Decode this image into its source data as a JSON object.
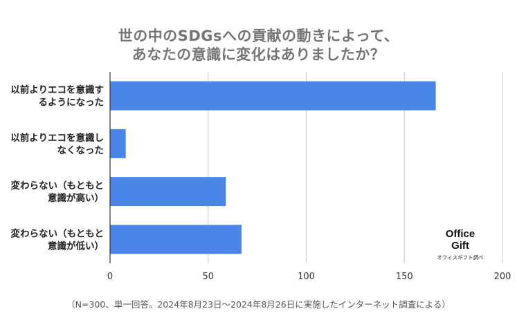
{
  "chart_data": {
    "type": "bar",
    "orientation": "horizontal",
    "title_lines": [
      "世の中のSDGsへの貢献の動きによって、",
      "あなたの意識に変化はありましたか？"
    ],
    "categories": [
      [
        "以前よりエコを意識す",
        "るようになった"
      ],
      [
        "以前よりエコを意識し",
        "なくなった"
      ],
      [
        "変わらない（もともと",
        "意識が高い）"
      ],
      [
        "変わらない（もともと",
        "意識が低い）"
      ]
    ],
    "values": [
      166,
      8,
      59,
      67
    ],
    "xlim": [
      0,
      200
    ],
    "xticks": [
      "0",
      "50",
      "100",
      "150",
      "200"
    ],
    "xtick_values": [
      0,
      50,
      100,
      150,
      200
    ],
    "grid": true,
    "bar_color": "#4a86e8",
    "footnote": "（N=300、単一回答。2024年8月23日〜2024年8月26日に実施したインターネット調査による）"
  },
  "logo": {
    "line1": "Office",
    "line2": "Gift",
    "caption": "オフィスギフト調べ"
  }
}
